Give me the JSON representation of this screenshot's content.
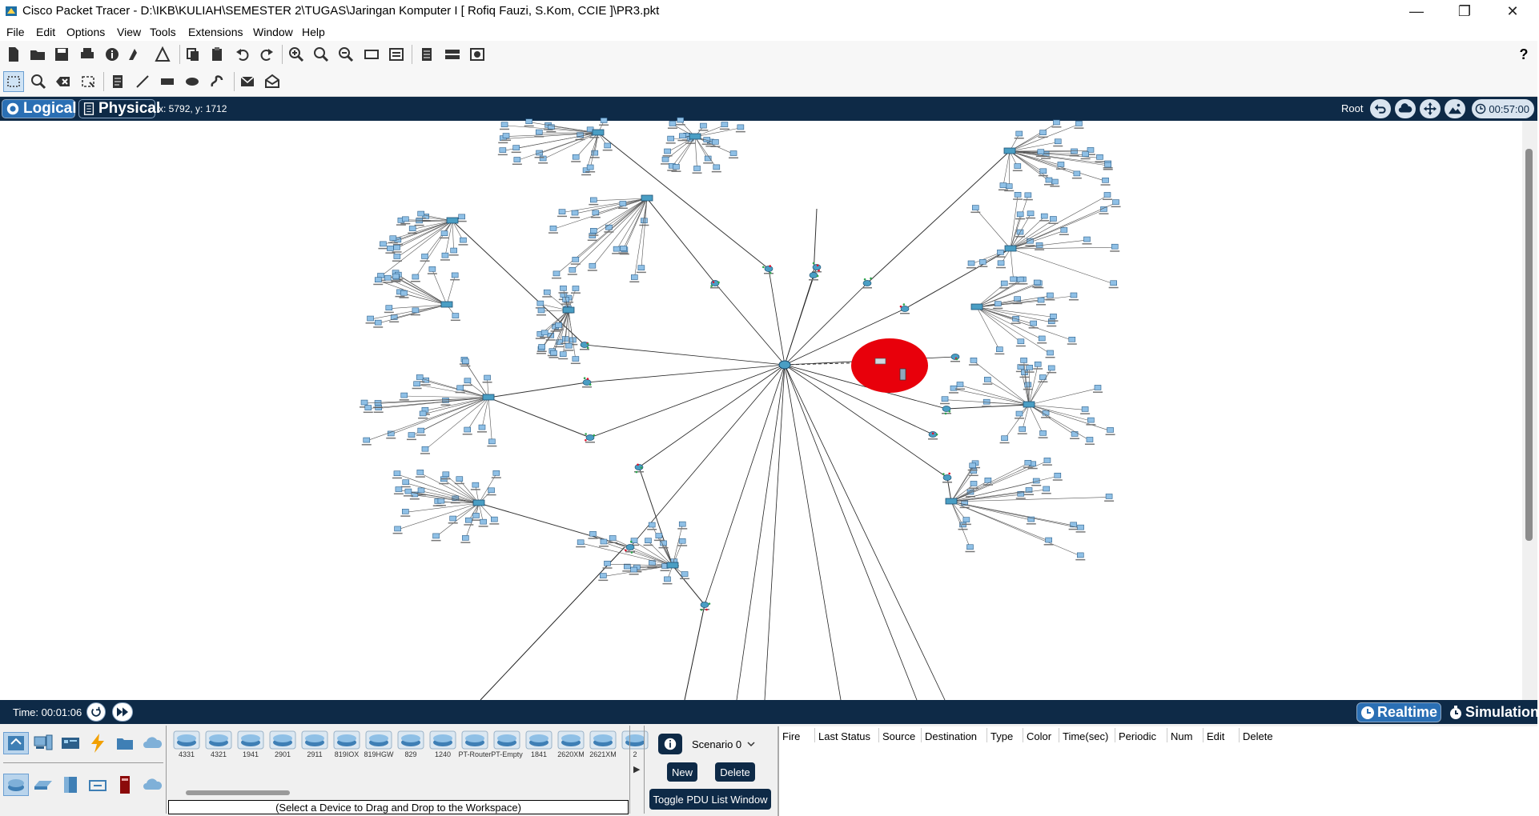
{
  "window": {
    "title": "Cisco Packet Tracer - D:\\IKB\\KULIAH\\SEMESTER 2\\TUGAS\\Jaringan Komputer I [ Rofiq Fauzi, S.Kom, CCIE ]\\PR3.pkt",
    "minimize": "—",
    "maximize": "❐",
    "close": "✕"
  },
  "menu": [
    "File",
    "Edit",
    "Options",
    "View",
    "Tools",
    "Extensions",
    "Window",
    "Help"
  ],
  "help_icon": "?",
  "nav": {
    "logical": "Logical",
    "physical": "Physical",
    "coords": "x: 5792, y: 1712",
    "root": "Root",
    "clock": "00:57:00"
  },
  "status": {
    "time": "Time: 00:01:06",
    "realtime": "Realtime",
    "simulation": "Simulation"
  },
  "devices": [
    "4331",
    "4321",
    "1941",
    "2901",
    "2911",
    "819IOX",
    "819HGW",
    "829",
    "1240",
    "PT-Router",
    "PT-Empty",
    "1841",
    "2620XM",
    "2621XM",
    "2"
  ],
  "hint": "(Select a Device to Drag and Drop to the Workspace)",
  "scenario": {
    "selected": "Scenario 0",
    "new": "New",
    "delete": "Delete",
    "toggle": "Toggle PDU List Window"
  },
  "pdu_columns": [
    "Fire",
    "Last Status",
    "Source",
    "Destination",
    "Type",
    "Color",
    "Time(sec)",
    "Periodic",
    "Num",
    "Edit",
    "Delete"
  ],
  "colors": {
    "navy": "#0e2a47",
    "router": "#4a9ec4",
    "highlight": "#e8000b"
  }
}
